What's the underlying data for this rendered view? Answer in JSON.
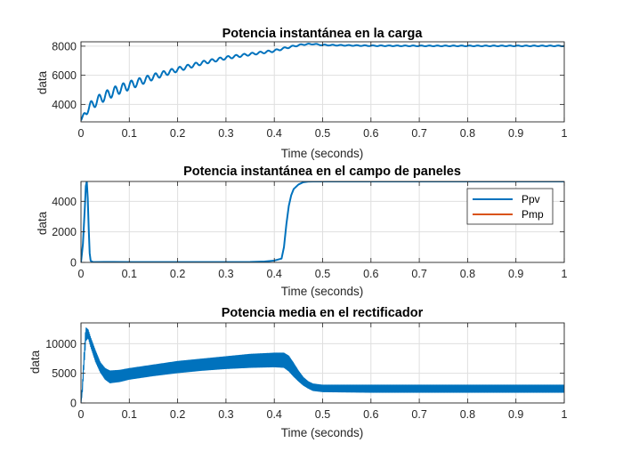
{
  "chart_data": [
    {
      "type": "line",
      "title": "Potencia instantánea en la carga",
      "xlabel": "Time (seconds)",
      "ylabel": "data",
      "xlim": [
        0,
        1
      ],
      "ylim": [
        2800,
        8300
      ],
      "xticks": [
        0,
        0.1,
        0.2,
        0.3,
        0.4,
        0.5,
        0.6,
        0.7,
        0.8,
        0.9,
        1
      ],
      "xtick_labels": [
        "0",
        "0.1",
        "0.2",
        "0.3",
        "0.4",
        "0.5",
        "0.6",
        "0.7",
        "0.8",
        "0.9",
        "1"
      ],
      "yticks": [
        4000,
        6000,
        8000
      ],
      "ytick_labels": [
        "4000",
        "6000",
        "8000"
      ],
      "grid": true,
      "series": [
        {
          "color": "#0072BD",
          "x": [
            0,
            0.01,
            0.02,
            0.04,
            0.06,
            0.08,
            0.1,
            0.15,
            0.2,
            0.25,
            0.3,
            0.35,
            0.4,
            0.42,
            0.44,
            0.46,
            0.48,
            0.5,
            0.6,
            0.7,
            0.8,
            0.9,
            1.0
          ],
          "y": [
            2900,
            3500,
            3900,
            4400,
            4750,
            5050,
            5300,
            5900,
            6400,
            6850,
            7200,
            7450,
            7680,
            7850,
            8000,
            8120,
            8150,
            8080,
            8030,
            8020,
            8020,
            8020,
            8020
          ],
          "ripple": [
            0,
            250,
            300,
            330,
            330,
            320,
            300,
            200,
            150,
            120,
            100,
            80,
            70,
            60,
            50,
            40,
            30,
            30,
            25,
            25,
            25,
            25,
            25
          ]
        }
      ]
    },
    {
      "type": "line",
      "title": "Potencia instantánea en el campo de paneles",
      "xlabel": "Time (seconds)",
      "ylabel": "data",
      "xlim": [
        0,
        1
      ],
      "ylim": [
        0,
        5300
      ],
      "xticks": [
        0,
        0.1,
        0.2,
        0.3,
        0.4,
        0.5,
        0.6,
        0.7,
        0.8,
        0.9,
        1
      ],
      "xtick_labels": [
        "0",
        "0.1",
        "0.2",
        "0.3",
        "0.4",
        "0.5",
        "0.6",
        "0.7",
        "0.8",
        "0.9",
        "1"
      ],
      "yticks": [
        0,
        2000,
        4000
      ],
      "ytick_labels": [
        "0",
        "2000",
        "4000"
      ],
      "grid": true,
      "legend": {
        "location": "top-right",
        "entries": [
          "Ppv",
          "Pmp"
        ]
      },
      "series": [
        {
          "name": "Ppv",
          "color": "#0072BD",
          "x": [
            0,
            0.004,
            0.008,
            0.01,
            0.012,
            0.014,
            0.016,
            0.018,
            0.02,
            0.025,
            0.05,
            0.1,
            0.2,
            0.3,
            0.35,
            0.38,
            0.4,
            0.415,
            0.42,
            0.425,
            0.43,
            0.435,
            0.44,
            0.45,
            0.46,
            0.47,
            0.48,
            0.5,
            0.6,
            0.8,
            1.0
          ],
          "y": [
            0,
            1200,
            3600,
            5000,
            5300,
            4200,
            2200,
            600,
            100,
            20,
            30,
            20,
            20,
            20,
            30,
            60,
            120,
            250,
            1000,
            2500,
            3700,
            4400,
            4800,
            5100,
            5250,
            5290,
            5300,
            5300,
            5300,
            5300,
            5300
          ]
        },
        {
          "name": "Pmp",
          "color": "#D95319",
          "x": [
            0,
            1
          ],
          "y": [
            5350,
            5350
          ]
        }
      ]
    },
    {
      "type": "line",
      "title": "Potencia media en el rectificador",
      "xlabel": "Time (seconds)",
      "ylabel": "data",
      "xlim": [
        0,
        1
      ],
      "ylim": [
        0,
        13500
      ],
      "xticks": [
        0,
        0.1,
        0.2,
        0.3,
        0.4,
        0.5,
        0.6,
        0.7,
        0.8,
        0.9,
        1
      ],
      "xtick_labels": [
        "0",
        "0.1",
        "0.2",
        "0.3",
        "0.4",
        "0.5",
        "0.6",
        "0.7",
        "0.8",
        "0.9",
        "1"
      ],
      "yticks": [
        0,
        5000,
        10000
      ],
      "ytick_labels": [
        "0",
        "5000",
        "10000"
      ],
      "grid": true,
      "series": [
        {
          "color": "#0072BD",
          "x": [
            0,
            0.003,
            0.006,
            0.01,
            0.015,
            0.02,
            0.03,
            0.04,
            0.05,
            0.06,
            0.08,
            0.1,
            0.15,
            0.2,
            0.25,
            0.3,
            0.35,
            0.4,
            0.42,
            0.43,
            0.44,
            0.45,
            0.46,
            0.47,
            0.48,
            0.5,
            0.6,
            0.7,
            0.8,
            0.9,
            1.0
          ],
          "lower": [
            0,
            2000,
            6000,
            10500,
            11000,
            9500,
            7000,
            5200,
            4000,
            3400,
            3600,
            4000,
            4600,
            5100,
            5500,
            5800,
            6000,
            6100,
            6000,
            5400,
            4500,
            3700,
            3000,
            2500,
            2100,
            1900,
            1800,
            1800,
            1800,
            1800,
            1800
          ],
          "upper": [
            0,
            3000,
            8000,
            12700,
            12300,
            11000,
            8800,
            6800,
            5800,
            5400,
            5500,
            5800,
            6400,
            7000,
            7400,
            7800,
            8200,
            8400,
            8400,
            7900,
            6700,
            5400,
            4300,
            3600,
            3200,
            3000,
            3000,
            3000,
            3000,
            3000,
            3000
          ]
        }
      ]
    }
  ]
}
